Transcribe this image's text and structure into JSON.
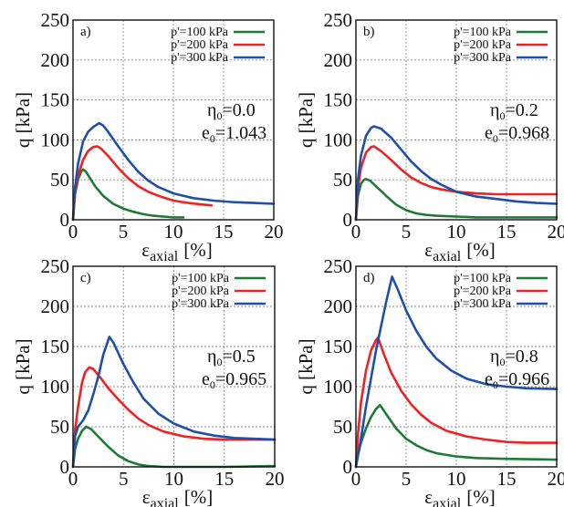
{
  "chart_data": [
    {
      "type": "line",
      "panel_label": "a)",
      "title": "",
      "xlabel": "ε",
      "xlabel_sub": "axial",
      "xlabel_unit": "[%]",
      "ylabel": "q [kPa]",
      "xlim": [
        0,
        20
      ],
      "ylim": [
        0,
        250
      ],
      "xticks": [
        "0",
        "5",
        "10",
        "15",
        "20"
      ],
      "yticks": [
        "0",
        "50",
        "100",
        "150",
        "200",
        "250"
      ],
      "grid": true,
      "legend_position": "top-right",
      "annotation": {
        "eta_label": "η",
        "eta_sub": "0",
        "eta_value": "=0.0",
        "e_label": "e",
        "e_sub": "0",
        "e_value": "=1.043"
      },
      "series": [
        {
          "name": "p'=100 kPa",
          "color": "#1f7a3a",
          "x": [
            0,
            0.2,
            0.5,
            0.8,
            1.0,
            1.3,
            1.7,
            2.2,
            3,
            4,
            5,
            6,
            7,
            8,
            9,
            10,
            11
          ],
          "y": [
            0,
            32,
            50,
            60,
            63,
            60,
            52,
            42,
            30,
            20,
            14,
            10,
            7,
            5,
            4,
            3,
            3
          ]
        },
        {
          "name": "p'=200 kPa",
          "color": "#ee2222",
          "x": [
            0,
            0.2,
            0.5,
            1.0,
            1.5,
            2.0,
            2.4,
            2.8,
            3.5,
            4.5,
            5.5,
            6.5,
            7.5,
            8.5,
            10,
            11.5,
            13,
            13.8
          ],
          "y": [
            0,
            35,
            55,
            75,
            86,
            91,
            92,
            89,
            80,
            65,
            52,
            42,
            35,
            30,
            24,
            21,
            19,
            18
          ]
        },
        {
          "name": "p'=300 kPa",
          "color": "#1f4faa",
          "x": [
            0,
            0.2,
            0.5,
            1.0,
            1.5,
            2.0,
            2.6,
            3.0,
            3.5,
            4.5,
            5.5,
            6.5,
            7.5,
            8.5,
            10,
            12,
            14,
            16,
            18,
            20
          ],
          "y": [
            0,
            40,
            70,
            98,
            110,
            116,
            121,
            118,
            110,
            92,
            75,
            60,
            49,
            41,
            33,
            27,
            24,
            22,
            21,
            20
          ]
        }
      ]
    },
    {
      "type": "line",
      "panel_label": "b)",
      "title": "",
      "xlabel": "ε",
      "xlabel_sub": "axial",
      "xlabel_unit": "[%]",
      "ylabel": "q [kPa]",
      "xlim": [
        0,
        20
      ],
      "ylim": [
        0,
        250
      ],
      "xticks": [
        "0",
        "5",
        "10",
        "15",
        "20"
      ],
      "yticks": [
        "0",
        "50",
        "100",
        "150",
        "200",
        "250"
      ],
      "grid": true,
      "legend_position": "top-right",
      "annotation": {
        "eta_label": "η",
        "eta_sub": "0",
        "eta_value": "=0.2",
        "e_label": "e",
        "e_sub": "0",
        "e_value": "=0.968"
      },
      "series": [
        {
          "name": "p'=100 kPa",
          "color": "#1f7a3a",
          "x": [
            0,
            0.2,
            0.5,
            0.8,
            1.0,
            1.4,
            2.0,
            3,
            4,
            5,
            6,
            7,
            8,
            10,
            12,
            15,
            20
          ],
          "y": [
            0,
            30,
            45,
            50,
            51,
            49,
            42,
            30,
            19,
            12,
            8,
            6,
            5,
            4,
            3,
            3,
            3
          ]
        },
        {
          "name": "p'=200 kPa",
          "color": "#ee2222",
          "x": [
            0,
            0.2,
            0.5,
            1.0,
            1.5,
            1.8,
            2.5,
            3.5,
            4.5,
            5.5,
            6.5,
            7.5,
            8.5,
            10,
            12,
            14,
            16,
            18,
            20
          ],
          "y": [
            0,
            40,
            65,
            84,
            91,
            92,
            86,
            75,
            63,
            53,
            46,
            41,
            38,
            35,
            33,
            32,
            32,
            32,
            32
          ]
        },
        {
          "name": "p'=300 kPa",
          "color": "#1f4faa",
          "x": [
            0,
            0.2,
            0.5,
            1.0,
            1.5,
            1.8,
            2.5,
            3.5,
            4.5,
            5.5,
            6.5,
            7.5,
            8.5,
            10,
            12,
            14,
            16,
            18,
            20
          ],
          "y": [
            0,
            50,
            80,
            105,
            115,
            117,
            114,
            103,
            88,
            73,
            61,
            51,
            44,
            35,
            29,
            26,
            23,
            21,
            20
          ]
        }
      ]
    },
    {
      "type": "line",
      "panel_label": "c)",
      "title": "",
      "xlabel": "ε",
      "xlabel_sub": "axial",
      "xlabel_unit": "[%]",
      "ylabel": "q [kPa]",
      "xlim": [
        0,
        20
      ],
      "ylim": [
        0,
        250
      ],
      "xticks": [
        "0",
        "5",
        "10",
        "15",
        "20"
      ],
      "yticks": [
        "0",
        "50",
        "100",
        "150",
        "200",
        "250"
      ],
      "grid": true,
      "legend_position": "top-right",
      "annotation": {
        "eta_label": "η",
        "eta_sub": "0",
        "eta_value": "=0.5",
        "e_label": "e",
        "e_sub": "0",
        "e_value": "=0.965"
      },
      "series": [
        {
          "name": "p'=100 kPa",
          "color": "#1f7a3a",
          "x": [
            0,
            0.2,
            0.5,
            0.9,
            1.3,
            1.8,
            2.5,
            3.5,
            4.5,
            5.5,
            6.5,
            7.5,
            9,
            12,
            15,
            20
          ],
          "y": [
            0,
            22,
            35,
            45,
            50,
            47,
            38,
            25,
            14,
            7,
            3,
            1,
            0,
            0,
            0,
            1
          ]
        },
        {
          "name": "p'=200 kPa",
          "color": "#ee2222",
          "x": [
            0,
            0.2,
            0.5,
            0.9,
            1.2,
            1.6,
            2.0,
            2.8,
            3.5,
            4.5,
            5.5,
            6.5,
            7.5,
            9,
            11,
            13,
            15,
            17,
            20
          ],
          "y": [
            0,
            45,
            75,
            105,
            118,
            124,
            122,
            110,
            98,
            84,
            71,
            60,
            52,
            44,
            38,
            35,
            34,
            34,
            34
          ]
        },
        {
          "name": "p'=300 kPa",
          "color": "#1f4faa",
          "x": [
            0,
            0.2,
            0.5,
            1.0,
            1.5,
            2.0,
            2.5,
            3.0,
            3.6,
            4.0,
            5.0,
            6.0,
            7.0,
            8.5,
            10,
            12,
            14,
            16,
            18,
            20
          ],
          "y": [
            0,
            38,
            50,
            58,
            70,
            90,
            112,
            140,
            162,
            155,
            128,
            105,
            85,
            66,
            54,
            44,
            39,
            36,
            35,
            34
          ]
        }
      ]
    },
    {
      "type": "line",
      "panel_label": "d)",
      "title": "",
      "xlabel": "ε",
      "xlabel_sub": "axial",
      "xlabel_unit": "[%]",
      "ylabel": "q [kPa]",
      "xlim": [
        0,
        20
      ],
      "ylim": [
        0,
        250
      ],
      "xticks": [
        "0",
        "5",
        "10",
        "15",
        "20"
      ],
      "yticks": [
        "0",
        "50",
        "100",
        "150",
        "200",
        "250"
      ],
      "grid": true,
      "legend_position": "top-right",
      "annotation": {
        "eta_label": "η",
        "eta_sub": "0",
        "eta_value": "=0.8",
        "e_label": "e",
        "e_sub": "0",
        "e_value": "=0.966"
      },
      "series": [
        {
          "name": "p'=100 kPa",
          "color": "#1f7a3a",
          "x": [
            0,
            0.2,
            0.5,
            1.0,
            1.5,
            2.0,
            2.4,
            3.0,
            4.0,
            5.0,
            6.0,
            7.0,
            8.0,
            10,
            12,
            15,
            20
          ],
          "y": [
            0,
            15,
            30,
            48,
            62,
            72,
            77,
            66,
            48,
            35,
            27,
            21,
            17,
            13,
            11,
            10,
            9
          ]
        },
        {
          "name": "p'=200 kPa",
          "color": "#ee2222",
          "x": [
            0,
            0.2,
            0.5,
            1.0,
            1.5,
            2.0,
            2.2,
            2.8,
            3.5,
            4.5,
            5.5,
            6.5,
            7.5,
            9,
            11,
            13,
            15,
            17,
            20
          ],
          "y": [
            0,
            40,
            80,
            120,
            145,
            158,
            161,
            140,
            118,
            95,
            78,
            65,
            55,
            45,
            38,
            34,
            31,
            30,
            30
          ]
        },
        {
          "name": "p'=300 kPa",
          "color": "#1f4faa",
          "x": [
            0,
            0.5,
            1.0,
            1.5,
            2.0,
            2.5,
            3.0,
            3.6,
            4.2,
            5.0,
            6.0,
            7.0,
            8.0,
            9.5,
            11,
            13,
            15,
            17,
            20
          ],
          "y": [
            0,
            35,
            75,
            110,
            145,
            175,
            205,
            237,
            220,
            195,
            170,
            150,
            135,
            120,
            110,
            103,
            100,
            98,
            97
          ]
        }
      ]
    }
  ]
}
